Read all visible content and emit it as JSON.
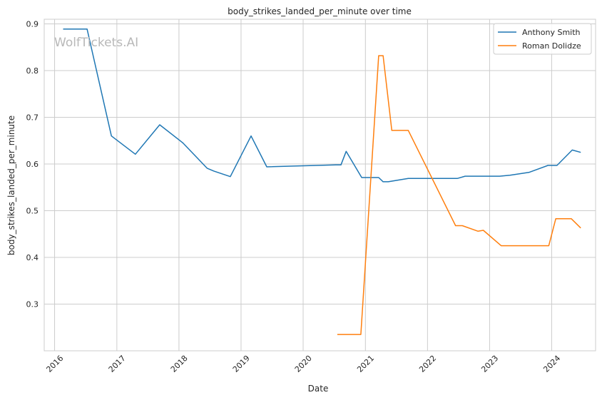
{
  "watermark": "WolfTickets.AI",
  "chart_data": {
    "type": "line",
    "title": "body_strikes_landed_per_minute over time",
    "xlabel": "Date",
    "ylabel": "body_strikes_landed_per_minute",
    "xlim": [
      "2015-11-01",
      "2024-09-15"
    ],
    "ylim": [
      0.2,
      0.91
    ],
    "x_ticks": [
      "2016",
      "2017",
      "2018",
      "2019",
      "2020",
      "2021",
      "2022",
      "2023",
      "2024"
    ],
    "y_ticks": [
      "0.3",
      "0.4",
      "0.5",
      "0.6",
      "0.7",
      "0.8",
      "0.9"
    ],
    "grid": true,
    "legend_position": "top-right",
    "series": [
      {
        "name": "Anthony Smith",
        "color": "#1f77b4",
        "points": [
          [
            "2016-02-20",
            0.889
          ],
          [
            "2016-07-10",
            0.889
          ],
          [
            "2016-11-30",
            0.66
          ],
          [
            "2017-04-20",
            0.621
          ],
          [
            "2017-09-10",
            0.684
          ],
          [
            "2018-01-25",
            0.645
          ],
          [
            "2018-06-15",
            0.591
          ],
          [
            "2018-07-25",
            0.585
          ],
          [
            "2018-10-30",
            0.573
          ],
          [
            "2019-03-01",
            0.66
          ],
          [
            "2019-06-01",
            0.594
          ],
          [
            "2020-07-10",
            0.598
          ],
          [
            "2020-08-10",
            0.598
          ],
          [
            "2020-09-10",
            0.627
          ],
          [
            "2020-12-10",
            0.571
          ],
          [
            "2021-03-20",
            0.571
          ],
          [
            "2021-04-15",
            0.562
          ],
          [
            "2021-05-15",
            0.562
          ],
          [
            "2021-09-10",
            0.569
          ],
          [
            "2022-06-25",
            0.569
          ],
          [
            "2022-08-10",
            0.574
          ],
          [
            "2023-03-01",
            0.574
          ],
          [
            "2023-05-01",
            0.576
          ],
          [
            "2023-08-20",
            0.582
          ],
          [
            "2023-12-10",
            0.597
          ],
          [
            "2024-02-01",
            0.597
          ],
          [
            "2024-05-01",
            0.63
          ],
          [
            "2024-06-20",
            0.625
          ]
        ]
      },
      {
        "name": "Roman Dolidze",
        "color": "#ff7f0e",
        "points": [
          [
            "2020-07-20",
            0.235
          ],
          [
            "2020-12-05",
            0.235
          ],
          [
            "2021-03-20",
            0.832
          ],
          [
            "2021-04-15",
            0.832
          ],
          [
            "2021-06-05",
            0.672
          ],
          [
            "2021-09-10",
            0.672
          ],
          [
            "2022-06-15",
            0.468
          ],
          [
            "2022-07-25",
            0.468
          ],
          [
            "2022-10-25",
            0.456
          ],
          [
            "2022-11-25",
            0.458
          ],
          [
            "2023-03-10",
            0.425
          ],
          [
            "2023-12-15",
            0.425
          ],
          [
            "2024-01-25",
            0.483
          ],
          [
            "2024-04-25",
            0.483
          ],
          [
            "2024-06-20",
            0.463
          ]
        ]
      }
    ]
  }
}
